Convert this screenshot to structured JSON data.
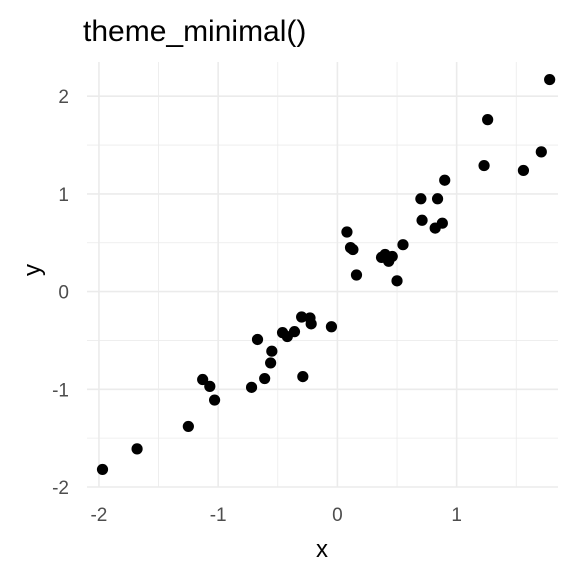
{
  "chart_data": {
    "type": "scatter",
    "title": "theme_minimal()",
    "xlabel": "x",
    "ylabel": "y",
    "xlim": [
      -2.1,
      1.85
    ],
    "ylim": [
      -2.0,
      2.35
    ],
    "xticks": [
      -2,
      -1,
      0,
      1
    ],
    "yticks": [
      -2,
      -1,
      0,
      1,
      2
    ],
    "xtick_labels": [
      "-2",
      "-1",
      "0",
      "1"
    ],
    "ytick_labels": [
      "-2",
      "-1",
      "0",
      "1",
      "2"
    ],
    "grid": true,
    "point_color": "#000000",
    "points": [
      {
        "x": -1.97,
        "y": -1.82
      },
      {
        "x": -1.68,
        "y": -1.61
      },
      {
        "x": -1.25,
        "y": -1.38
      },
      {
        "x": -1.13,
        "y": -0.9
      },
      {
        "x": -1.07,
        "y": -0.97
      },
      {
        "x": -1.03,
        "y": -1.11
      },
      {
        "x": -0.72,
        "y": -0.98
      },
      {
        "x": -0.67,
        "y": -0.49
      },
      {
        "x": -0.61,
        "y": -0.89
      },
      {
        "x": -0.56,
        "y": -0.73
      },
      {
        "x": -0.55,
        "y": -0.61
      },
      {
        "x": -0.46,
        "y": -0.42
      },
      {
        "x": -0.42,
        "y": -0.46
      },
      {
        "x": -0.36,
        "y": -0.41
      },
      {
        "x": -0.3,
        "y": -0.26
      },
      {
        "x": -0.29,
        "y": -0.87
      },
      {
        "x": -0.23,
        "y": -0.27
      },
      {
        "x": -0.22,
        "y": -0.33
      },
      {
        "x": -0.05,
        "y": -0.36
      },
      {
        "x": 0.08,
        "y": 0.61
      },
      {
        "x": 0.11,
        "y": 0.45
      },
      {
        "x": 0.13,
        "y": 0.43
      },
      {
        "x": 0.16,
        "y": 0.17
      },
      {
        "x": 0.37,
        "y": 0.35
      },
      {
        "x": 0.4,
        "y": 0.38
      },
      {
        "x": 0.43,
        "y": 0.31
      },
      {
        "x": 0.46,
        "y": 0.36
      },
      {
        "x": 0.5,
        "y": 0.11
      },
      {
        "x": 0.55,
        "y": 0.48
      },
      {
        "x": 0.7,
        "y": 0.95
      },
      {
        "x": 0.71,
        "y": 0.73
      },
      {
        "x": 0.82,
        "y": 0.65
      },
      {
        "x": 0.84,
        "y": 0.95
      },
      {
        "x": 0.88,
        "y": 0.7
      },
      {
        "x": 0.9,
        "y": 1.14
      },
      {
        "x": 1.23,
        "y": 1.29
      },
      {
        "x": 1.26,
        "y": 1.76
      },
      {
        "x": 1.56,
        "y": 1.24
      },
      {
        "x": 1.71,
        "y": 1.43
      },
      {
        "x": 1.78,
        "y": 2.17
      }
    ]
  }
}
